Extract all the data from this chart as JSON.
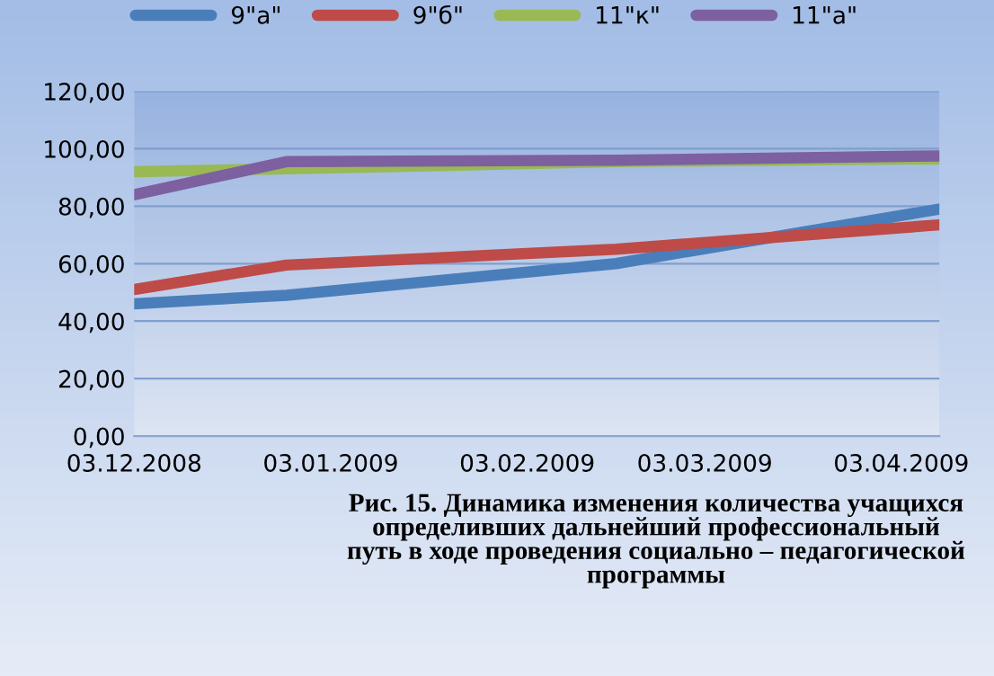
{
  "chart_data": {
    "type": "line",
    "x": [
      "2008-12-03",
      "2008-12-27",
      "2009-02-17",
      "2009-04-09"
    ],
    "series": [
      {
        "name": "9\"а\"",
        "color": "#4a7ebb",
        "values": [
          46,
          49,
          60,
          79
        ]
      },
      {
        "name": "9\"б\"",
        "color": "#be4b48",
        "values": [
          51,
          59.5,
          65,
          73.5
        ]
      },
      {
        "name": "11\"к\"",
        "color": "#98b954",
        "values": [
          92,
          93,
          95.5,
          96.5
        ]
      },
      {
        "name": "11\"а\"",
        "color": "#7d60a0",
        "values": [
          84,
          95.5,
          96,
          97.5
        ]
      }
    ],
    "xlim": [
      "2008-12-03",
      "2009-04-09"
    ],
    "xticks": [
      {
        "value": "2008-12-03",
        "label": "03.12.2008"
      },
      {
        "value": "2009-01-03",
        "label": "03.01.2009"
      },
      {
        "value": "2009-02-03",
        "label": "03.02.2009"
      },
      {
        "value": "2009-03-03",
        "label": "03.03.2009"
      },
      {
        "value": "2009-04-03",
        "label": "03.04.2009"
      }
    ],
    "ylim": [
      0,
      120
    ],
    "yticks": [
      {
        "value": 0,
        "label": "0,00"
      },
      {
        "value": 20,
        "label": "20,00"
      },
      {
        "value": 40,
        "label": "40,00"
      },
      {
        "value": 60,
        "label": "60,00"
      },
      {
        "value": 80,
        "label": "80,00"
      },
      {
        "value": 100,
        "label": "100,00"
      },
      {
        "value": 120,
        "label": "120,00"
      }
    ],
    "grid": "y",
    "legend": "top",
    "marker": "none",
    "line_style": "solid",
    "annotations": [
      "Рис. 15. Динамика изменения количества учащихся\nопределивших дальнейший профессиональный\nпуть в ходе проведения социально – педагогической\nпрограммы"
    ]
  }
}
